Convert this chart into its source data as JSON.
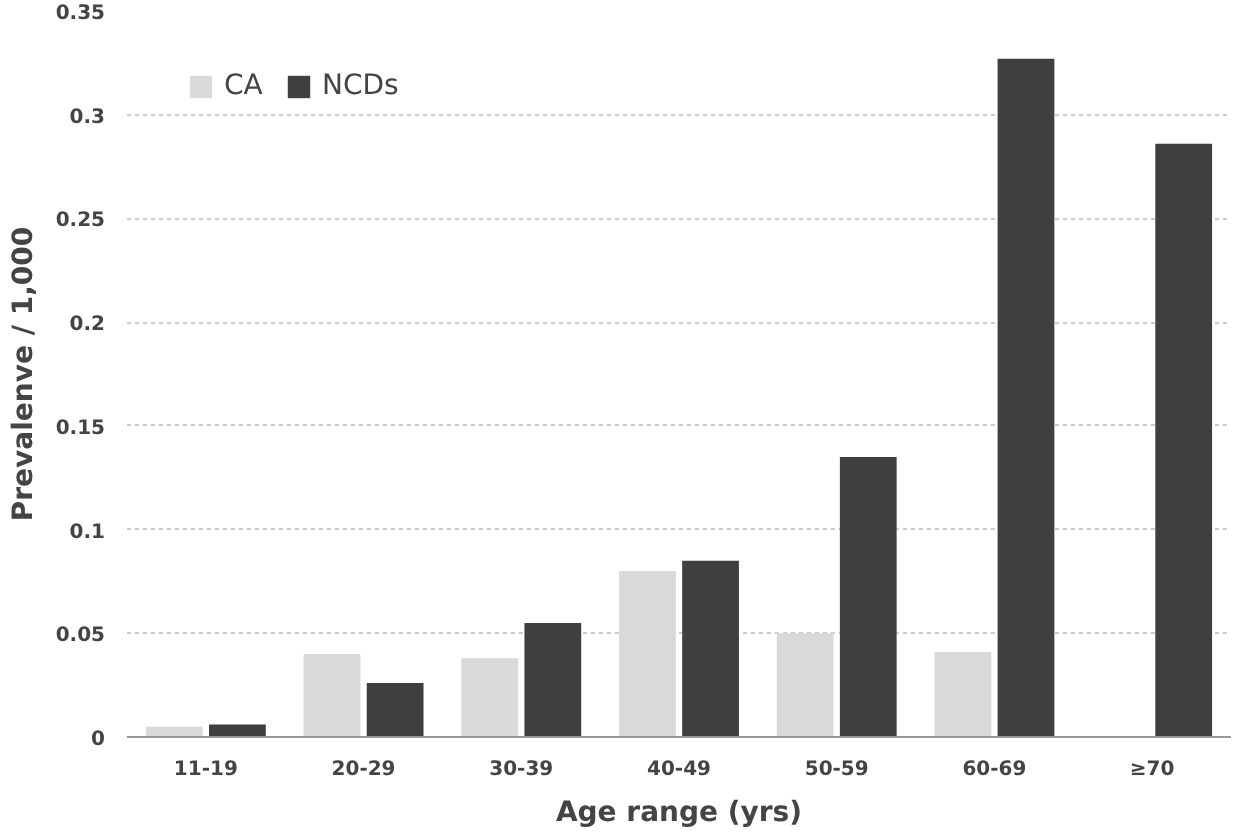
{
  "chart_data": {
    "type": "bar",
    "xlabel": "Age range (yrs)",
    "ylabel": "Prevalenve / 1,000",
    "categories": [
      "11-19",
      "20-29",
      "30-39",
      "40-49",
      "50-59",
      "60-69",
      "≥70"
    ],
    "series": [
      {
        "name": "CA",
        "color": "#d9d9d9",
        "values": [
          0.005,
          0.04,
          0.038,
          0.08,
          0.05,
          0.041,
          0
        ]
      },
      {
        "name": "NCDs",
        "color": "#3f3f3f",
        "values": [
          0.006,
          0.026,
          0.055,
          0.085,
          0.135,
          0.327,
          0.286
        ]
      }
    ],
    "ylim": [
      0,
      0.35
    ],
    "yticks": [
      0,
      0.05,
      0.1,
      0.15,
      0.2,
      0.25,
      0.3,
      0.35
    ],
    "grid": "y",
    "legend": "top left"
  }
}
